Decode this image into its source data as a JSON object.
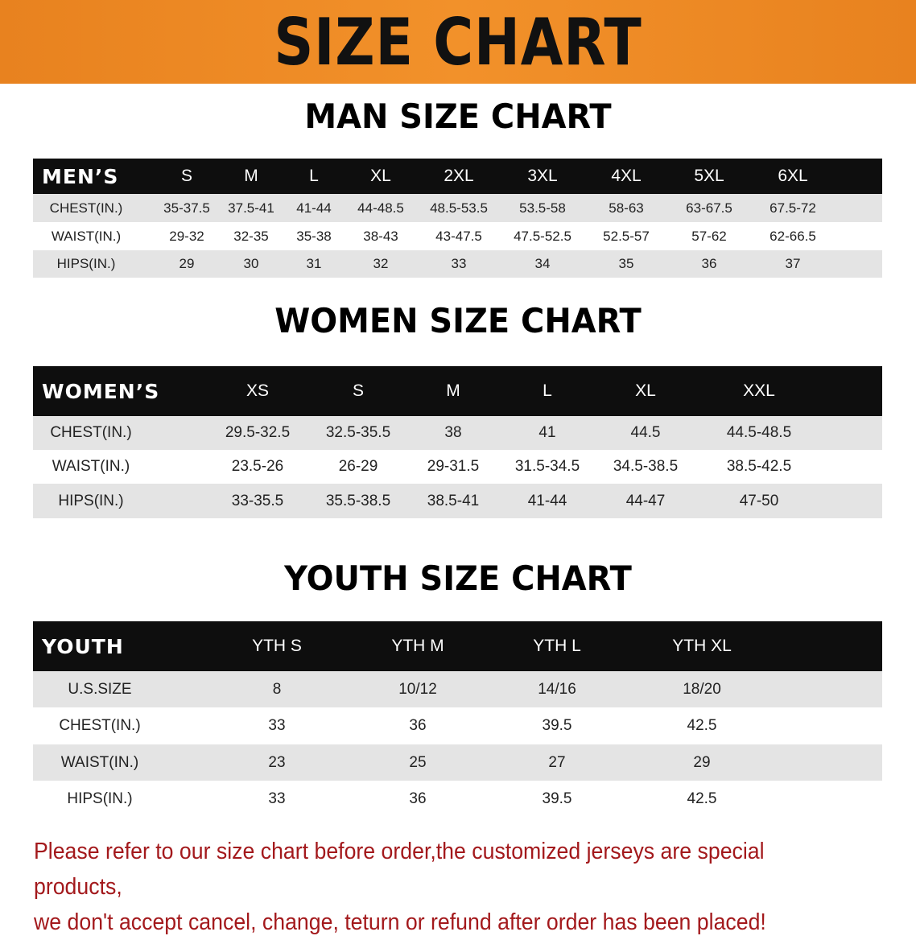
{
  "banner": {
    "title": "SIZE CHART",
    "color": "#f0892a"
  },
  "men": {
    "title": "MAN SIZE CHART",
    "header": [
      "MEN’S",
      "S",
      "M",
      "L",
      "XL",
      "2XL",
      "3XL",
      "4XL",
      "5XL",
      "6XL"
    ],
    "rows": [
      [
        "CHEST(IN.)",
        "35-37.5",
        "37.5-41",
        "41-44",
        "44-48.5",
        "48.5-53.5",
        "53.5-58",
        "58-63",
        "63-67.5",
        "67.5-72"
      ],
      [
        "WAIST(IN.)",
        "29-32",
        "32-35",
        "35-38",
        "38-43",
        "43-47.5",
        "47.5-52.5",
        "52.5-57",
        "57-62",
        "62-66.5"
      ],
      [
        "HIPS(IN.)",
        "29",
        "30",
        "31",
        "32",
        "33",
        "34",
        "35",
        "36",
        "37"
      ]
    ]
  },
  "women": {
    "title": "WOMEN SIZE CHART",
    "header": [
      "WOMEN’S",
      "XS",
      "S",
      "M",
      "L",
      "XL",
      "XXL"
    ],
    "rows": [
      [
        "CHEST(IN.)",
        "29.5-32.5",
        "32.5-35.5",
        "38",
        "41",
        "44.5",
        "44.5-48.5"
      ],
      [
        "WAIST(IN.)",
        "23.5-26",
        "26-29",
        "29-31.5",
        "31.5-34.5",
        "34.5-38.5",
        "38.5-42.5"
      ],
      [
        "HIPS(IN.)",
        "33-35.5",
        "35.5-38.5",
        "38.5-41",
        "41-44",
        "44-47",
        "47-50"
      ]
    ]
  },
  "youth": {
    "title": "YOUTH SIZE CHART",
    "header": [
      "YOUTH",
      "YTH S",
      "YTH M",
      "YTH L",
      "YTH XL"
    ],
    "rows": [
      [
        "U.S.SIZE",
        "8",
        "10/12",
        "14/16",
        "18/20"
      ],
      [
        "CHEST(IN.)",
        "33",
        "36",
        "39.5",
        "42.5"
      ],
      [
        "WAIST(IN.)",
        "23",
        "25",
        "27",
        "29"
      ],
      [
        "HIPS(IN.)",
        "33",
        "36",
        "39.5",
        "42.5"
      ]
    ]
  },
  "note": {
    "line1": "Please refer to our size chart before order,the customized jerseys are special products,",
    "line2": "we don't accept cancel, change, teturn or refund after order has been placed!",
    "color": "#a3191c"
  }
}
